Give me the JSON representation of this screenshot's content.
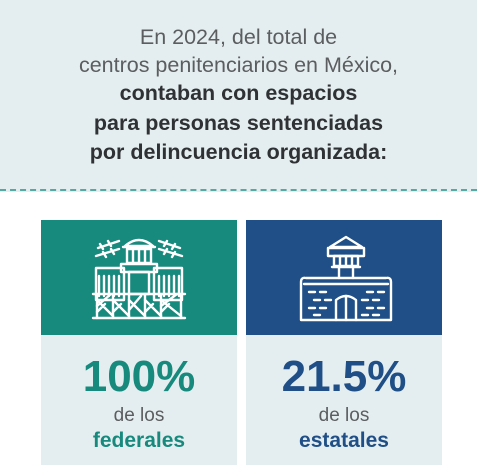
{
  "header": {
    "line1": "En 2024, del total de",
    "line2": "centros penitenciarios en México,",
    "line3": "contaban con espacios",
    "line4": "para personas sentenciadas",
    "line5": "por delincuencia organizada:"
  },
  "cards": [
    {
      "icon": "federal-prison-icon",
      "percent_text": "100%",
      "percent_value": 100,
      "sub": "de los",
      "kind": "federales",
      "color": "#17897d"
    },
    {
      "icon": "state-prison-icon",
      "percent_text": "21.5%",
      "percent_value": 21.5,
      "sub": "de los",
      "kind": "estatales",
      "color": "#1f4f86"
    }
  ],
  "colors": {
    "background": "#e4eef0",
    "dashed_divider": "#55a9a2",
    "federal": "#17897d",
    "state": "#1f4f86"
  }
}
